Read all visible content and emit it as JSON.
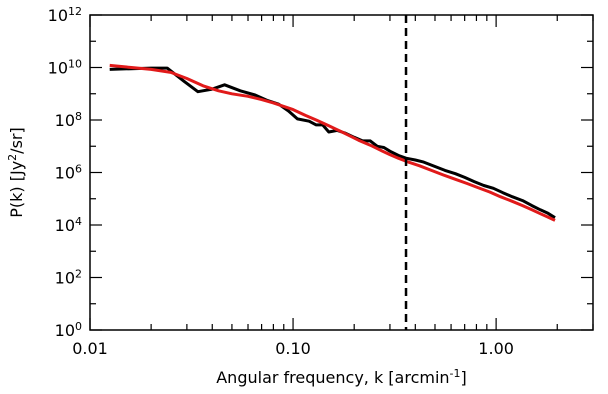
{
  "chart_data": {
    "type": "line",
    "title": "",
    "xlabel": "Angular frequency, k [arcmin",
    "xlabel_sup": "-1",
    "xlabel_tail": "]",
    "ylabel": "P(k) [Jy",
    "ylabel_sup": "2",
    "ylabel_tail": "/sr]",
    "x_scale": "log",
    "y_scale": "log",
    "xlim": [
      0.01,
      3.0
    ],
    "ylim": [
      1,
      1000000000000
    ],
    "x_ticks": [
      {
        "value": 0.01,
        "label": "0.01"
      },
      {
        "value": 0.1,
        "label": "0.10"
      },
      {
        "value": 1.0,
        "label": "1.00"
      }
    ],
    "y_ticks": [
      {
        "value": 1,
        "base": "10",
        "exp": "0"
      },
      {
        "value": 100,
        "base": "10",
        "exp": "2"
      },
      {
        "value": 10000,
        "base": "10",
        "exp": "4"
      },
      {
        "value": 1000000,
        "base": "10",
        "exp": "6"
      },
      {
        "value": 100000000,
        "base": "10",
        "exp": "8"
      },
      {
        "value": 10000000000,
        "base": "10",
        "exp": "10"
      },
      {
        "value": 1000000000000,
        "base": "10",
        "exp": "12"
      }
    ],
    "grid": false,
    "legend": "none",
    "reference_line": {
      "x": 0.36,
      "style": "dashed",
      "color": "#000000"
    },
    "series": [
      {
        "color": "#000000",
        "points": [
          [
            0.0125,
            8500000000.0
          ],
          [
            0.016,
            9000000000.0
          ],
          [
            0.02,
            9500000000.0
          ],
          [
            0.024,
            9500000000.0
          ],
          [
            0.029,
            3000000000.0
          ],
          [
            0.034,
            1200000000.0
          ],
          [
            0.04,
            1500000000.0
          ],
          [
            0.046,
            2200000000.0
          ],
          [
            0.055,
            1300000000.0
          ],
          [
            0.065,
            900000000.0
          ],
          [
            0.075,
            550000000.0
          ],
          [
            0.085,
            400000000.0
          ],
          [
            0.095,
            220000000.0
          ],
          [
            0.105,
            110000000.0
          ],
          [
            0.12,
            90000000.0
          ],
          [
            0.13,
            65000000.0
          ],
          [
            0.14,
            65000000.0
          ],
          [
            0.15,
            35000000.0
          ],
          [
            0.165,
            40000000.0
          ],
          [
            0.18,
            32000000.0
          ],
          [
            0.2,
            22000000.0
          ],
          [
            0.22,
            16000000.0
          ],
          [
            0.24,
            16000000.0
          ],
          [
            0.26,
            10000000.0
          ],
          [
            0.28,
            9000000.0
          ],
          [
            0.3,
            6500000.0
          ],
          [
            0.33,
            4500000.0
          ],
          [
            0.36,
            3500000.0
          ],
          [
            0.4,
            3000000.0
          ],
          [
            0.44,
            2500000.0
          ],
          [
            0.5,
            1700000.0
          ],
          [
            0.56,
            1200000.0
          ],
          [
            0.63,
            900000.0
          ],
          [
            0.7,
            650000.0
          ],
          [
            0.78,
            450000.0
          ],
          [
            0.87,
            320000.0
          ],
          [
            0.97,
            250000.0
          ],
          [
            1.08,
            170000.0
          ],
          [
            1.2,
            120000.0
          ],
          [
            1.35,
            85000.0
          ],
          [
            1.5,
            55000.0
          ],
          [
            1.65,
            38000.0
          ],
          [
            1.8,
            28000.0
          ],
          [
            1.95,
            19000.0
          ]
        ]
      },
      {
        "color": "#e11a1a",
        "points": [
          [
            0.0125,
            12000000000.0
          ],
          [
            0.016,
            10000000000.0
          ],
          [
            0.02,
            8500000000.0
          ],
          [
            0.025,
            6500000000.0
          ],
          [
            0.03,
            3800000000.0
          ],
          [
            0.036,
            2000000000.0
          ],
          [
            0.043,
            1300000000.0
          ],
          [
            0.05,
            1000000000.0
          ],
          [
            0.06,
            800000000.0
          ],
          [
            0.07,
            600000000.0
          ],
          [
            0.08,
            450000000.0
          ],
          [
            0.09,
            330000000.0
          ],
          [
            0.1,
            250000000.0
          ],
          [
            0.115,
            150000000.0
          ],
          [
            0.13,
            100000000.0
          ],
          [
            0.15,
            60000000.0
          ],
          [
            0.17,
            38000000.0
          ],
          [
            0.19,
            25000000.0
          ],
          [
            0.21,
            17000000.0
          ],
          [
            0.24,
            11000000.0
          ],
          [
            0.27,
            7000000.0
          ],
          [
            0.3,
            4800000.0
          ],
          [
            0.33,
            3500000.0
          ],
          [
            0.37,
            2500000.0
          ],
          [
            0.42,
            1800000.0
          ],
          [
            0.48,
            1200000.0
          ],
          [
            0.55,
            800000.0
          ],
          [
            0.63,
            550000.0
          ],
          [
            0.72,
            380000.0
          ],
          [
            0.82,
            260000.0
          ],
          [
            0.93,
            180000.0
          ],
          [
            1.05,
            120000.0
          ],
          [
            1.2,
            80000.0
          ],
          [
            1.35,
            55000.0
          ],
          [
            1.5,
            38000.0
          ],
          [
            1.65,
            27000.0
          ],
          [
            1.8,
            20000.0
          ],
          [
            1.95,
            15000.0
          ]
        ]
      }
    ]
  }
}
